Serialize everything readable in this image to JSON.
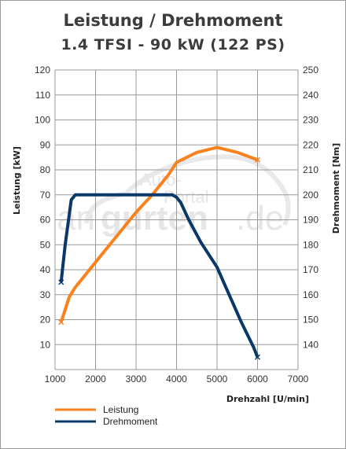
{
  "title": "Leistung / Drehmoment",
  "subtitle": "1.4 TFSI - 90 kW (122 PS)",
  "watermark": {
    "line1": "Auto-",
    "line2": "Portal",
    "main_left": "an",
    "main_bold": "gurten",
    "main_right": ".de"
  },
  "chart_data": {
    "type": "line",
    "title": "Leistung / Drehmoment",
    "subtitle": "1.4 TFSI - 90 kW (122 PS)",
    "xlabel": "Drehzahl [U/min]",
    "ylabel": "Leistung [kW]",
    "y2label": "Drehmoment [Nm]",
    "xlim": [
      1000,
      7000
    ],
    "ylim": [
      0,
      120
    ],
    "y2lim": [
      130,
      250
    ],
    "xticks": [
      "1000",
      "2000",
      "3000",
      "4000",
      "5000",
      "6000",
      "7000"
    ],
    "yticks": [
      "10",
      "20",
      "30",
      "40",
      "50",
      "60",
      "70",
      "80",
      "90",
      "100",
      "110",
      "120"
    ],
    "y2ticks": [
      "140",
      "150",
      "160",
      "170",
      "180",
      "190",
      "200",
      "210",
      "220",
      "230",
      "240",
      "250"
    ],
    "grid": true,
    "legend_position": "bottom-left",
    "series": [
      {
        "name": "Leistung",
        "axis": "left",
        "color": "#f7821e",
        "x": [
          1150,
          1250,
          1350,
          1500,
          1800,
          2200,
          2600,
          3000,
          3400,
          3800,
          4000,
          4500,
          5000,
          5500,
          6000
        ],
        "y": [
          19,
          24,
          29,
          33,
          39,
          47,
          55,
          63,
          70,
          78,
          83,
          87,
          89,
          87,
          84
        ]
      },
      {
        "name": "Drehmoment",
        "axis": "right",
        "color": "#0a3868",
        "x": [
          1150,
          1250,
          1400,
          1500,
          2000,
          3000,
          3900,
          4000,
          4100,
          4300,
          4600,
          5000,
          5300,
          5600,
          5900,
          6000
        ],
        "y": [
          165,
          180,
          198,
          200,
          200,
          200,
          200,
          199,
          197,
          190,
          181,
          171,
          160,
          149,
          139,
          135
        ]
      }
    ]
  }
}
